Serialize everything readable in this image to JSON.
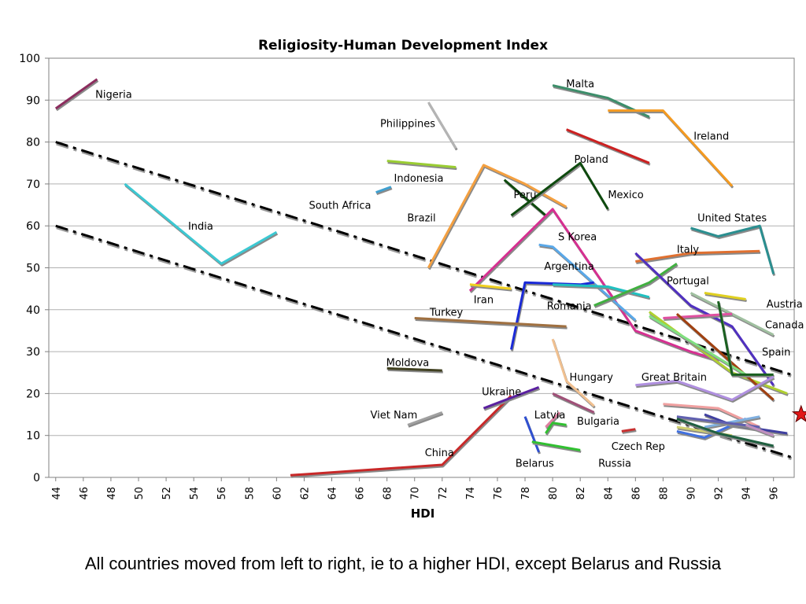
{
  "caption": "All countries moved from left to right, ie to a higher HDI, except Belarus and Russia",
  "chart_data": {
    "type": "line",
    "title": "Religiosity-Human Development Index",
    "xlabel": "HDI",
    "ylabel": "",
    "xlim": [
      43.5,
      97.5
    ],
    "ylim": [
      0,
      100
    ],
    "xticks": [
      "44",
      "46",
      "48",
      "50",
      "52",
      "54",
      "56",
      "58",
      "60",
      "62",
      "64",
      "66",
      "68",
      "70",
      "72",
      "74",
      "76",
      "78",
      "80",
      "82",
      "84",
      "86",
      "88",
      "90",
      "92",
      "94",
      "96"
    ],
    "yticks": [
      "0",
      "10",
      "20",
      "30",
      "40",
      "50",
      "60",
      "70",
      "80",
      "90",
      "100"
    ],
    "grid": "horizontal",
    "trend_lines": [
      {
        "points": [
          [
            44,
            80
          ],
          [
            97.3,
            24.5
          ]
        ],
        "color": "#000000"
      },
      {
        "points": [
          [
            44,
            60
          ],
          [
            97.3,
            4.8
          ]
        ],
        "color": "#000000"
      }
    ],
    "series": [
      {
        "color": "#8c2d5e",
        "points": [
          [
            44,
            88
          ],
          [
            47,
            95
          ]
        ]
      },
      {
        "color": "#b4b4b4",
        "points": [
          [
            71,
            89.5
          ],
          [
            73,
            78.5
          ]
        ]
      },
      {
        "color": "#9acd32",
        "points": [
          [
            68,
            75.5
          ],
          [
            73,
            74
          ]
        ]
      },
      {
        "color": "#3fa0d0",
        "points": [
          [
            67.2,
            68
          ],
          [
            68.3,
            69.3
          ]
        ]
      },
      {
        "color": "#3cc8d2",
        "points": [
          [
            49,
            70
          ],
          [
            56,
            51
          ],
          [
            60,
            58.5
          ]
        ]
      },
      {
        "color": "#f4a040",
        "points": [
          [
            71,
            50
          ],
          [
            75,
            74.5
          ],
          [
            78,
            70
          ],
          [
            81,
            64.5
          ]
        ]
      },
      {
        "color": "#0e4a0e",
        "points": [
          [
            76.5,
            71
          ],
          [
            79.5,
            62.5
          ]
        ]
      },
      {
        "color": "#0e4a0e",
        "points": [
          [
            77,
            62.5
          ],
          [
            82,
            75
          ],
          [
            84,
            64
          ]
        ]
      },
      {
        "color": "#3c8e6a",
        "points": [
          [
            80,
            93.5
          ],
          [
            84,
            90.5
          ],
          [
            87,
            86
          ]
        ]
      },
      {
        "color": "#f49a20",
        "points": [
          [
            84,
            87.5
          ],
          [
            88,
            87.5
          ],
          [
            93,
            69.5
          ]
        ]
      },
      {
        "color": "#cc2020",
        "points": [
          [
            81,
            83
          ],
          [
            87,
            75
          ]
        ]
      },
      {
        "color": "#2a8f90",
        "points": [
          [
            90,
            59.5
          ],
          [
            92,
            57.5
          ],
          [
            95,
            60
          ],
          [
            96,
            48.5
          ]
        ]
      },
      {
        "color": "#d63091",
        "points": [
          [
            74,
            44.5
          ],
          [
            80,
            64
          ],
          [
            86,
            35
          ],
          [
            90,
            30
          ],
          [
            92,
            28
          ]
        ]
      },
      {
        "color": "#5aa8e8",
        "points": [
          [
            79,
            55.5
          ],
          [
            80,
            55
          ],
          [
            86,
            37.5
          ]
        ]
      },
      {
        "color": "#1a2ad8",
        "points": [
          [
            77,
            30.5
          ],
          [
            78,
            46.5
          ],
          [
            82,
            46
          ],
          [
            83,
            46.5
          ]
        ]
      },
      {
        "color": "#20c0c0",
        "points": [
          [
            80,
            46
          ],
          [
            84,
            45.5
          ],
          [
            87,
            43
          ]
        ]
      },
      {
        "color": "#f0d020",
        "points": [
          [
            74,
            46
          ],
          [
            77,
            45
          ]
        ]
      },
      {
        "color": "#a07040",
        "points": [
          [
            70,
            38
          ],
          [
            81,
            36
          ]
        ]
      },
      {
        "color": "#404020",
        "points": [
          [
            68,
            26
          ],
          [
            72,
            25.5
          ]
        ]
      },
      {
        "color": "#a0a0a0",
        "points": [
          [
            69.5,
            12.5
          ],
          [
            72,
            15.5
          ]
        ]
      },
      {
        "color": "#c82828",
        "points": [
          [
            61,
            0.5
          ],
          [
            72,
            3
          ],
          [
            77,
            19.5
          ]
        ]
      },
      {
        "color": "#5a20a0",
        "points": [
          [
            75,
            16.5
          ],
          [
            79,
            21.5
          ]
        ]
      },
      {
        "color": "#f0c090",
        "points": [
          [
            80,
            33
          ],
          [
            81,
            23
          ],
          [
            83,
            17
          ]
        ]
      },
      {
        "color": "#a05078",
        "points": [
          [
            80,
            20
          ],
          [
            83,
            15.5
          ]
        ]
      },
      {
        "color": "#e080a0",
        "points": [
          [
            79.5,
            12
          ],
          [
            80.5,
            15.5
          ]
        ]
      },
      {
        "color": "#3050d0",
        "points": [
          [
            78,
            14.5
          ],
          [
            79,
            6
          ]
        ]
      },
      {
        "color": "#30c030",
        "points": [
          [
            78.5,
            8.5
          ],
          [
            82,
            6.5
          ]
        ]
      },
      {
        "color": "#30c030",
        "points": [
          [
            79.5,
            10.5
          ],
          [
            80,
            13
          ],
          [
            81,
            12.5
          ]
        ]
      },
      {
        "color": "#c83030",
        "points": [
          [
            85,
            11
          ],
          [
            86,
            11.5
          ]
        ]
      },
      {
        "color": "#e07030",
        "points": [
          [
            86,
            51.5
          ],
          [
            90,
            53.5
          ],
          [
            95,
            54
          ]
        ]
      },
      {
        "color": "#40b040",
        "points": [
          [
            83,
            41
          ],
          [
            87,
            46.5
          ],
          [
            89,
            51
          ]
        ]
      },
      {
        "color": "#5030c0",
        "points": [
          [
            86,
            53.5
          ],
          [
            90,
            41
          ],
          [
            93,
            36
          ],
          [
            96,
            22
          ]
        ]
      },
      {
        "color": "#e0d020",
        "points": [
          [
            91,
            44
          ],
          [
            94,
            42.5
          ]
        ]
      },
      {
        "color": "#a0c0a0",
        "points": [
          [
            90,
            44
          ],
          [
            96,
            34
          ]
        ]
      },
      {
        "color": "#b0d030",
        "points": [
          [
            87,
            39.5
          ],
          [
            93,
            25
          ],
          [
            97,
            20
          ]
        ]
      },
      {
        "color": "#e050a0",
        "points": [
          [
            88,
            38
          ],
          [
            93,
            39
          ]
        ]
      },
      {
        "color": "#a04010",
        "points": [
          [
            89,
            39
          ],
          [
            96,
            18.5
          ]
        ]
      },
      {
        "color": "#80e080",
        "points": [
          [
            87,
            38.5
          ],
          [
            94,
            24.5
          ]
        ]
      },
      {
        "color": "#1a6020",
        "points": [
          [
            92,
            42
          ],
          [
            93,
            24.5
          ],
          [
            96,
            24.5
          ]
        ]
      },
      {
        "color": "#b090e0",
        "points": [
          [
            86,
            22
          ],
          [
            89,
            23
          ],
          [
            93,
            18.5
          ],
          [
            96,
            24
          ]
        ]
      },
      {
        "color": "#f0a0a0",
        "points": [
          [
            88,
            17.5
          ],
          [
            92,
            16.5
          ],
          [
            95,
            12
          ]
        ]
      },
      {
        "color": "#4070e0",
        "points": [
          [
            89,
            11
          ],
          [
            91,
            9.5
          ],
          [
            94,
            14
          ]
        ]
      },
      {
        "color": "#80b0e0",
        "points": [
          [
            91,
            12
          ],
          [
            95,
            14.5
          ]
        ]
      },
      {
        "color": "#4040a0",
        "points": [
          [
            91,
            15
          ],
          [
            93,
            12.5
          ],
          [
            97,
            10.5
          ]
        ]
      },
      {
        "color": "#6060b0",
        "points": [
          [
            89,
            14.5
          ],
          [
            95,
            12
          ]
        ]
      },
      {
        "color": "#d0d070",
        "points": [
          [
            89,
            12
          ],
          [
            93,
            10
          ]
        ]
      },
      {
        "color": "#206040",
        "points": [
          [
            89,
            14
          ],
          [
            92,
            10.5
          ],
          [
            96,
            7.5
          ]
        ]
      },
      {
        "color": "#c090c0",
        "points": [
          [
            94,
            12.5
          ],
          [
            96,
            10
          ]
        ]
      }
    ],
    "labels": [
      {
        "text": "Nigeria",
        "x": 48.2,
        "y": 91.5
      },
      {
        "text": "Philippines",
        "x": 69.5,
        "y": 84.5
      },
      {
        "text": "Indonesia",
        "x": 70.3,
        "y": 71.5
      },
      {
        "text": "South Africa",
        "x": 64.6,
        "y": 65.0
      },
      {
        "text": "India",
        "x": 54.5,
        "y": 60.0
      },
      {
        "text": "Brazil",
        "x": 70.5,
        "y": 62.0
      },
      {
        "text": "Peru",
        "x": 78.0,
        "y": 67.5
      },
      {
        "text": "Poland",
        "x": 82.8,
        "y": 76.0
      },
      {
        "text": "Mexico",
        "x": 85.3,
        "y": 67.5
      },
      {
        "text": "Malta",
        "x": 82.0,
        "y": 94.0
      },
      {
        "text": "Ireland",
        "x": 91.5,
        "y": 81.5
      },
      {
        "text": "United States",
        "x": 93.0,
        "y": 62.0
      },
      {
        "text": "Italy",
        "x": 89.8,
        "y": 54.5
      },
      {
        "text": "S Korea",
        "x": 81.8,
        "y": 57.5
      },
      {
        "text": "Argentina",
        "x": 81.2,
        "y": 50.5
      },
      {
        "text": "Portugal",
        "x": 89.8,
        "y": 47.0
      },
      {
        "text": "Iran",
        "x": 75.0,
        "y": 42.5
      },
      {
        "text": "Romania",
        "x": 81.2,
        "y": 41.0
      },
      {
        "text": "Austria",
        "x": 96.8,
        "y": 41.5
      },
      {
        "text": "Turkey",
        "x": 72.3,
        "y": 39.5
      },
      {
        "text": "Canada",
        "x": 96.8,
        "y": 36.5
      },
      {
        "text": "Spain",
        "x": 96.2,
        "y": 30.0
      },
      {
        "text": "Moldova",
        "x": 69.5,
        "y": 27.5
      },
      {
        "text": "Hungary",
        "x": 82.8,
        "y": 24.0
      },
      {
        "text": "Great Britain",
        "x": 88.8,
        "y": 24.0
      },
      {
        "text": "Ukraine",
        "x": 76.3,
        "y": 20.5
      },
      {
        "text": "Viet Nam",
        "x": 68.5,
        "y": 15.0
      },
      {
        "text": "Latvia",
        "x": 79.8,
        "y": 15.0
      },
      {
        "text": "Bulgaria",
        "x": 83.3,
        "y": 13.5
      },
      {
        "text": "Czech Rep",
        "x": 86.2,
        "y": 7.5
      },
      {
        "text": "China",
        "x": 71.8,
        "y": 6.0
      },
      {
        "text": "Belarus",
        "x": 78.7,
        "y": 3.5
      },
      {
        "text": "Russia",
        "x": 84.5,
        "y": 3.5
      }
    ],
    "markers": [
      {
        "type": "star",
        "x": 98.0,
        "y": 15.0,
        "color": "#e01818"
      }
    ]
  }
}
